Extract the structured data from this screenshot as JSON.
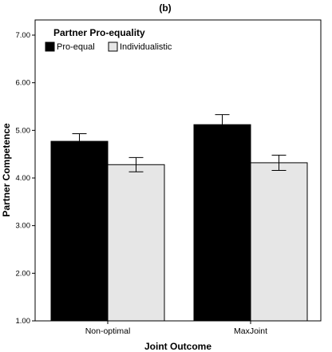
{
  "panel_label": "(b)",
  "chart_data": {
    "type": "bar",
    "title": "",
    "xlabel": "Joint Outcome",
    "ylabel": "Partner Competence",
    "ylim": [
      1.0,
      7.0
    ],
    "yticks": [
      "1.00",
      "2.00",
      "3.00",
      "4.00",
      "5.00",
      "6.00",
      "7.00"
    ],
    "grid": false,
    "legend": {
      "title": "Partner Pro-equality",
      "placement": "top-left"
    },
    "categories": [
      "Non-optimal",
      "MaxJoint"
    ],
    "series": [
      {
        "name": "Pro-equal",
        "color": "#000000",
        "values": [
          4.77,
          5.12
        ],
        "error_upper": [
          4.93,
          5.33
        ],
        "error_lower": [
          4.62,
          4.92
        ]
      },
      {
        "name": "Individualistic",
        "color": "#e6e6e6",
        "values": [
          4.28,
          4.32
        ],
        "error_upper": [
          4.43,
          4.48
        ],
        "error_lower": [
          4.13,
          4.16
        ]
      }
    ]
  }
}
